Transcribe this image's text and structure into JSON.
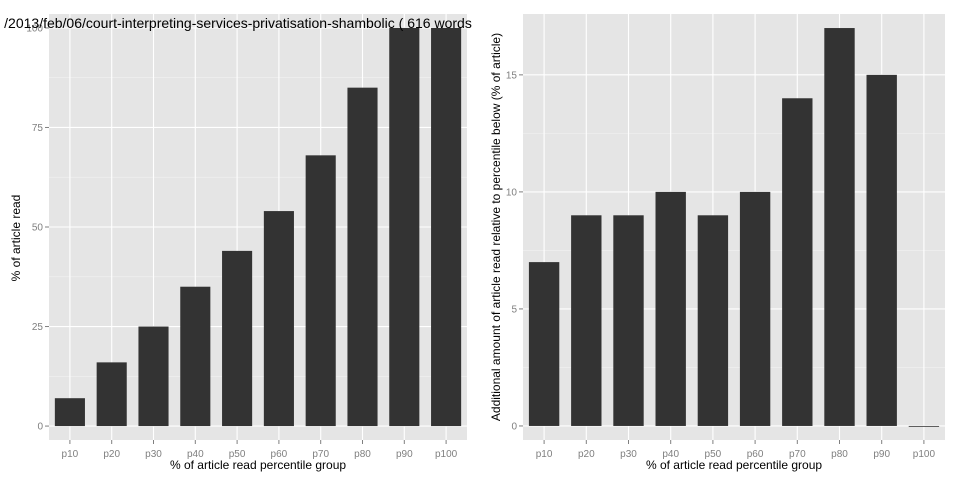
{
  "chart_data": [
    {
      "type": "bar",
      "title": "/2013/feb/06/court-interpreting-services-privatisation-shambolic ( 616 words",
      "xlabel": "% of article read percentile group",
      "ylabel": "% of article read",
      "categories": [
        "p10",
        "p20",
        "p30",
        "p40",
        "p50",
        "p60",
        "p70",
        "p80",
        "p90",
        "p100"
      ],
      "values": [
        7,
        16,
        25,
        35,
        44,
        54,
        68,
        85,
        100,
        100
      ],
      "ylim": [
        -3.5,
        103.5
      ],
      "yticks": [
        0,
        25,
        50,
        75,
        100
      ],
      "grid": true,
      "bar_color": "#333333",
      "panel_color": "#e5e5e5"
    },
    {
      "type": "bar",
      "title": "",
      "xlabel": "% of article read percentile group",
      "ylabel": "Additional amount of article read relative to percentile below (% of article)",
      "categories": [
        "p10",
        "p20",
        "p30",
        "p40",
        "p50",
        "p60",
        "p70",
        "p80",
        "p90",
        "p100"
      ],
      "values": [
        7,
        9,
        9,
        10,
        9,
        10,
        14,
        17,
        15,
        0
      ],
      "ylim": [
        -0.6,
        17.6
      ],
      "yticks": [
        0,
        5,
        10,
        15
      ],
      "grid": true,
      "bar_color": "#333333",
      "panel_color": "#e5e5e5"
    }
  ]
}
